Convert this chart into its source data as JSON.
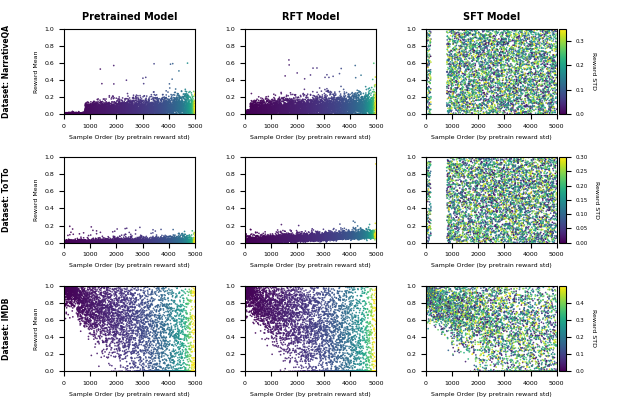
{
  "col_titles": [
    "Pretrained Model",
    "RFT Model",
    "SFT Model"
  ],
  "row_labels": [
    "Dataset: NarrativeQA",
    "Dataset: ToTTo",
    "Dataset: IMDB"
  ],
  "xlabel": "Sample Order (by pretrain reward std)",
  "ylabel": "Reward Mean",
  "colorbar_label": "Reward STD",
  "n_points": 5000,
  "xlim": [
    0,
    5000
  ],
  "ylim": [
    0,
    1.0
  ],
  "colorbar_ranges": [
    [
      0.0,
      0.35
    ],
    [
      0.0,
      0.3
    ],
    [
      0.0,
      0.5
    ]
  ],
  "colorbar_ticks": [
    [
      0.0,
      0.1,
      0.2,
      0.3
    ],
    [
      0.0,
      0.05,
      0.1,
      0.15,
      0.2,
      0.25,
      0.3
    ],
    [
      0.0,
      0.1,
      0.2,
      0.3,
      0.4
    ]
  ],
  "seed": 42,
  "marker_size": 1.5
}
